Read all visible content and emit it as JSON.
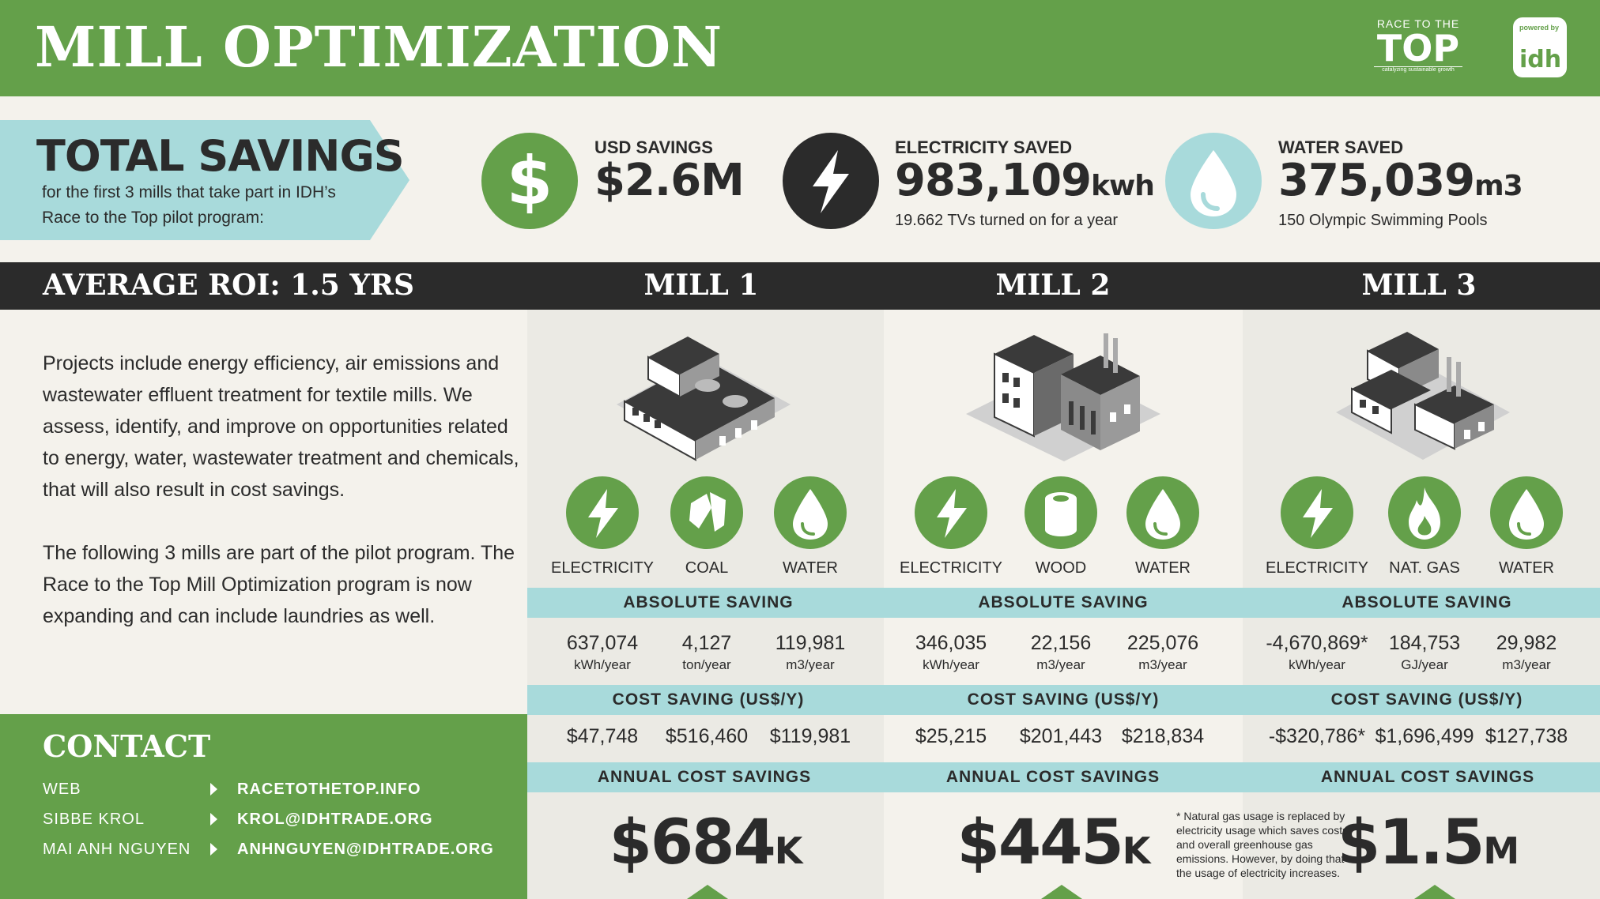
{
  "header": {
    "title": "MILL OPTIMIZATION",
    "logo_rtt_small": "RACE TO THE",
    "logo_rtt_big": "TOP",
    "logo_rtt_tag": "catalyzing sustainable growth",
    "logo_idh_powered": "powered by",
    "logo_idh_name": "idh",
    "brand_green": "#64a04a",
    "dark": "#2b2b2b",
    "teal": "#a8dadb"
  },
  "total_savings": {
    "title": "TOTAL SAVINGS",
    "subtitle": "for the first 3 mills that take part in IDH’s Race to the Top pilot program:",
    "usd": {
      "label": "USD SAVINGS",
      "value": "$2.6M",
      "icon": "dollar-icon"
    },
    "electricity": {
      "label": "ELECTRICITY SAVED",
      "value": "983,109",
      "unit": "kwh",
      "note": "19.662 TVs turned on for a year",
      "icon": "lightning-icon"
    },
    "water": {
      "label": "WATER SAVED",
      "value": "375,039",
      "unit": "m3",
      "note": "150 Olympic Swimming Pools",
      "icon": "water-drop-icon"
    }
  },
  "roi": {
    "label": "AVERAGE ROI:  1.5 YRS"
  },
  "description": {
    "p1": "Projects include energy efficiency, air emissions and wastewater effluent treatment for textile mills. We assess, identify, and improve on opportunities related to energy, water, wastewater treatment and chemicals, that will also result in cost savings.",
    "p2": "The following 3 mills are part of the pilot program. The Race to the Top Mill Optimization program is now expanding and can include laundries as well."
  },
  "contact": {
    "title": "CONTACT",
    "rows": [
      {
        "label": "WEB",
        "value": "RACETOTHETOP.INFO"
      },
      {
        "label": "SIBBE KROL",
        "value": "KROL@IDHTRADE.ORG"
      },
      {
        "label": "MAI ANH NGUYEN",
        "value": "ANHNGUYEN@IDHTRADE.ORG"
      }
    ]
  },
  "bands": {
    "absolute": "ABSOLUTE SAVING",
    "cost": "COST SAVING (US$/Y)",
    "annual": "ANNUAL COST SAVINGS"
  },
  "mills": [
    {
      "title": "MILL 1",
      "resources": [
        {
          "label": "ELECTRICITY",
          "icon": "lightning-icon",
          "value": "637,074",
          "unit": "kWh/year",
          "cost": "$47,748"
        },
        {
          "label": "COAL",
          "icon": "coal-icon",
          "value": "4,127",
          "unit": "ton/year",
          "cost": "$516,460"
        },
        {
          "label": "WATER",
          "icon": "water-drop-icon",
          "value": "119,981",
          "unit": "m3/year",
          "cost": "$119,981"
        }
      ],
      "annual": "$684",
      "annual_unit": "K"
    },
    {
      "title": "MILL 2",
      "resources": [
        {
          "label": "ELECTRICITY",
          "icon": "lightning-icon",
          "value": "346,035",
          "unit": "kWh/year",
          "cost": "$25,215"
        },
        {
          "label": "WOOD",
          "icon": "wood-log-icon",
          "value": "22,156",
          "unit": "m3/year",
          "cost": "$201,443"
        },
        {
          "label": "WATER",
          "icon": "water-drop-icon",
          "value": "225,076",
          "unit": "m3/year",
          "cost": "$218,834"
        }
      ],
      "annual": "$445",
      "annual_unit": "K"
    },
    {
      "title": "MILL 3",
      "resources": [
        {
          "label": "ELECTRICITY",
          "icon": "lightning-icon",
          "value": "-4,670,869*",
          "unit": "kWh/year",
          "cost": "-$320,786*"
        },
        {
          "label": "NAT. GAS",
          "icon": "flame-icon",
          "value": "184,753",
          "unit": "GJ/year",
          "cost": "$1,696,499"
        },
        {
          "label": "WATER",
          "icon": "water-drop-icon",
          "value": "29,982",
          "unit": "m3/year",
          "cost": "$127,738"
        }
      ],
      "annual": "$1.5",
      "annual_unit": "M"
    }
  ],
  "footnote": "* Natural gas usage is replaced by electricity usage which saves costs and overall greenhouse gas emissions. However, by doing that the usage of electricity increases."
}
